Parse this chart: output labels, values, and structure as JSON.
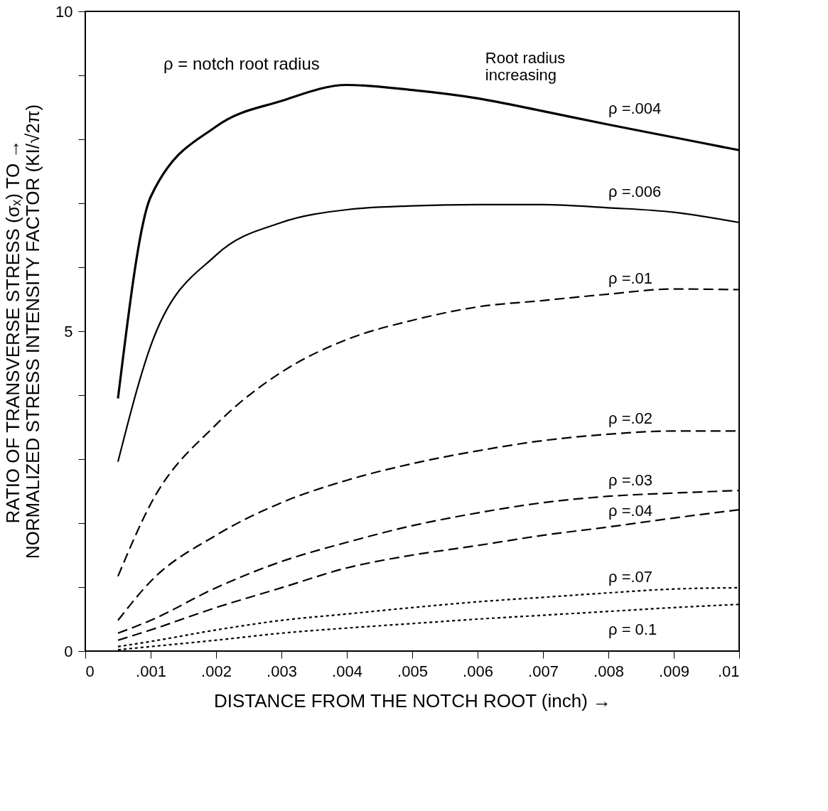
{
  "chart_data": {
    "type": "line",
    "xlabel": "DISTANCE FROM THE NOTCH ROOT (inch) →",
    "ylabel": "RATIO OF  TRANSVERSE STRESS (σₓ) TO  →\nNORMALIZED STRESS INTENSITY FACTOR (KI/√2π)",
    "x": [
      0.0005,
      0.001,
      0.002,
      0.003,
      0.004,
      0.005,
      0.006,
      0.007,
      0.008,
      0.009,
      0.01
    ],
    "series": [
      {
        "name": "ρ =.004",
        "color": "#000000",
        "line_style": "solid",
        "values": [
          3.95,
          7.1,
          8.2,
          8.6,
          8.85,
          8.77,
          8.64,
          8.44,
          8.23,
          8.03,
          7.83
        ]
      },
      {
        "name": "ρ =.006",
        "color": "#000000",
        "line_style": "solid",
        "values": [
          2.96,
          4.77,
          6.19,
          6.7,
          6.9,
          6.96,
          6.98,
          6.98,
          6.93,
          6.86,
          6.7
        ]
      },
      {
        "name": "ρ =.01",
        "color": "#000000",
        "line_style": "dashed",
        "values": [
          1.17,
          2.3,
          3.54,
          4.36,
          4.87,
          5.17,
          5.38,
          5.48,
          5.58,
          5.66,
          5.65
        ]
      },
      {
        "name": "ρ =.02",
        "color": "#000000",
        "line_style": "dashed",
        "values": [
          0.48,
          1.09,
          1.81,
          2.32,
          2.67,
          2.93,
          3.13,
          3.29,
          3.39,
          3.44,
          3.44
        ]
      },
      {
        "name": "ρ =.03",
        "color": "#000000",
        "line_style": "dashed",
        "values": [
          0.28,
          0.48,
          0.99,
          1.4,
          1.7,
          1.96,
          2.16,
          2.32,
          2.42,
          2.47,
          2.51
        ]
      },
      {
        "name": "ρ =.04",
        "color": "#000000",
        "line_style": "dashed",
        "values": [
          0.17,
          0.33,
          0.68,
          0.99,
          1.3,
          1.5,
          1.65,
          1.81,
          1.94,
          2.08,
          2.21
        ]
      },
      {
        "name": "ρ =.07",
        "color": "#000000",
        "line_style": "dotted",
        "values": [
          0.07,
          0.15,
          0.33,
          0.48,
          0.58,
          0.68,
          0.77,
          0.84,
          0.91,
          0.97,
          0.99
        ]
      },
      {
        "name": "ρ = 0.1",
        "color": "#000000",
        "line_style": "dotted",
        "values": [
          0.02,
          0.07,
          0.17,
          0.28,
          0.36,
          0.43,
          0.5,
          0.56,
          0.62,
          0.68,
          0.73
        ]
      }
    ],
    "xlim": [
      0,
      0.01
    ],
    "ylim": [
      0,
      10
    ],
    "xticks": [
      0,
      {
        "value": 0.001,
        "label": ".001"
      },
      {
        "value": 0.002,
        "label": ".002"
      },
      {
        "value": 0.003,
        "label": ".003"
      },
      {
        "value": 0.004,
        "label": ".004"
      },
      {
        "value": 0.005,
        "label": ".005"
      },
      {
        "value": 0.006,
        "label": ".006"
      },
      {
        "value": 0.007,
        "label": ".007"
      },
      {
        "value": 0.008,
        "label": ".008"
      },
      {
        "value": 0.009,
        "label": ".009"
      },
      {
        "value": 0.01,
        "label": ".01"
      }
    ],
    "yticks": [
      0,
      {
        "value": 1,
        "label": null
      },
      {
        "value": 2,
        "label": null
      },
      {
        "value": 3,
        "label": null
      },
      {
        "value": 4,
        "label": null
      },
      5,
      {
        "value": 6,
        "label": null
      },
      {
        "value": 7,
        "label": null
      },
      {
        "value": 8,
        "label": null
      },
      {
        "value": 9,
        "label": null
      },
      10
    ],
    "annotations": [
      "ρ = notch root radius",
      {
        "text": "Root radius\nincreasing",
        "x": 0.0059,
        "y": 8.66
      }
    ],
    "grid": false,
    "legend": false,
    "marker": "none"
  }
}
